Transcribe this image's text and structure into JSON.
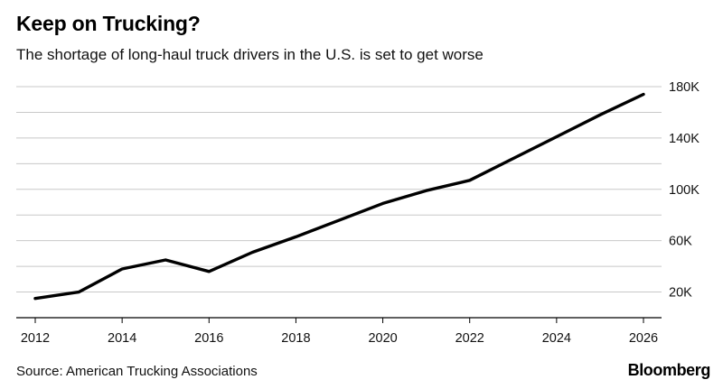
{
  "header": {
    "title": "Keep on Trucking?",
    "subtitle": "The shortage of long-haul truck drivers in the U.S. is set to get worse"
  },
  "footer": {
    "source": "Source: American Trucking Associations",
    "brand": "Bloomberg"
  },
  "colors": {
    "line": "#000000",
    "grid": "#c8c8c8",
    "axis": "#000000"
  },
  "chart_data": {
    "type": "line",
    "title": "Keep on Trucking?",
    "subtitle": "The shortage of long-haul truck drivers in the U.S. is set to get worse",
    "xlabel": "",
    "ylabel": "",
    "x": [
      2012,
      2013,
      2014,
      2015,
      2016,
      2017,
      2018,
      2019,
      2020,
      2021,
      2022,
      2023,
      2024,
      2025,
      2026
    ],
    "series": [
      {
        "values": [
          15000,
          20000,
          38000,
          45000,
          36000,
          51000,
          63000,
          76000,
          89000,
          99000,
          107000,
          124000,
          141000,
          158000,
          174000
        ]
      }
    ],
    "xlim": [
      2012,
      2026
    ],
    "ylim": [
      0,
      180000
    ],
    "xticks": [
      2012,
      2014,
      2016,
      2018,
      2020,
      2022,
      2024,
      2026
    ],
    "xtick_labels": [
      "2012",
      "2014",
      "2016",
      "2018",
      "2020",
      "2022",
      "2024",
      "2026"
    ],
    "yticks": [
      20000,
      40000,
      60000,
      80000,
      100000,
      120000,
      140000,
      160000,
      180000
    ],
    "ytick_labels": [
      "20K",
      "",
      "60K",
      "",
      "100K",
      "",
      "140K",
      "",
      "180K"
    ],
    "grid": true,
    "y_axis_side": "right"
  }
}
